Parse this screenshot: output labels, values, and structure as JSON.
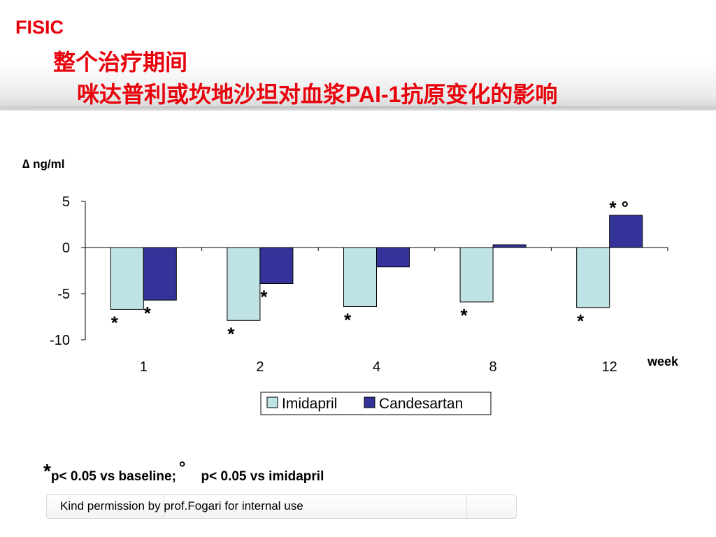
{
  "header": {
    "brand": "FISIC",
    "title_line1": "整个治疗期间",
    "title_line2": "咪达普利或坎地沙坦对血浆PAI-1抗原变化的影响"
  },
  "colors": {
    "title": "#e8000b",
    "imidapril": "#bfe3e5",
    "candesartan": "#33339a"
  },
  "chart_data": {
    "type": "bar",
    "ylabel": "∆ ng/ml",
    "xlabel": "week",
    "categories": [
      "1",
      "2",
      "4",
      "8",
      "12"
    ],
    "ylim": [
      -10,
      5
    ],
    "yticks": [
      "5",
      "0",
      "-5",
      "-10"
    ],
    "series": [
      {
        "name": "Imidapril",
        "values": [
          -6.7,
          -7.9,
          -6.4,
          -5.9,
          -6.5
        ]
      },
      {
        "name": "Candesartan",
        "values": [
          -5.7,
          -3.9,
          -2.1,
          0.3,
          3.5
        ]
      }
    ],
    "significance": {
      "Imidapril": [
        "*",
        "*",
        "*",
        "*",
        "*"
      ],
      "Candesartan": [
        "*",
        "*",
        "",
        "",
        "* °"
      ]
    },
    "legend_position": "bottom-center"
  },
  "footnote": {
    "star": "*",
    "p_baseline": "p< 0.05 vs baseline;",
    "circle": "°",
    "p_imidapril": "p< 0.05 vs imidapril"
  },
  "footer": {
    "text": "Kind permission by prof.Fogari for internal use"
  }
}
